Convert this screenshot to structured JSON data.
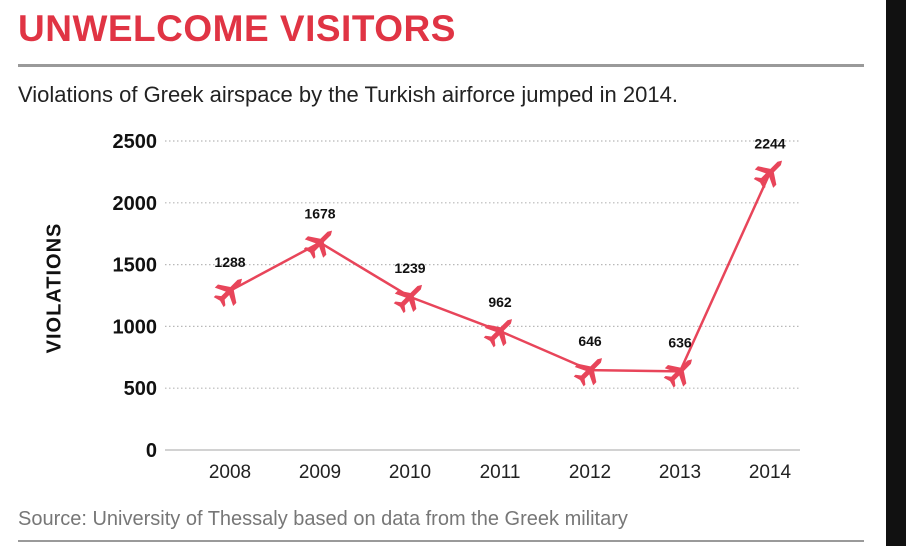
{
  "title": "UNWELCOME VISITORS",
  "subtitle": "Violations of Greek airspace by the Turkish airforce jumped in 2014.",
  "source": "Source: University of Thessaly based on data from the Greek military",
  "colors": {
    "title": "#e03444",
    "line": "#e8455a",
    "grid": "#b8b8b8",
    "text": "#111111"
  },
  "chart_data": {
    "type": "line",
    "x": [
      "2008",
      "2009",
      "2010",
      "2011",
      "2012",
      "2013",
      "2014"
    ],
    "values": [
      1288,
      1678,
      1239,
      962,
      646,
      636,
      2244
    ],
    "data_labels": [
      "1288",
      "1678",
      "1239",
      "962",
      "646",
      "636",
      "2244"
    ],
    "yticks": [
      "0",
      "500",
      "1000",
      "1500",
      "2000",
      "2500"
    ],
    "ylabel": "VIOLATIONS",
    "xlabel": "",
    "ylim": [
      0,
      2500
    ],
    "marker": "airplane-icon",
    "grid": "horizontal dotted"
  }
}
